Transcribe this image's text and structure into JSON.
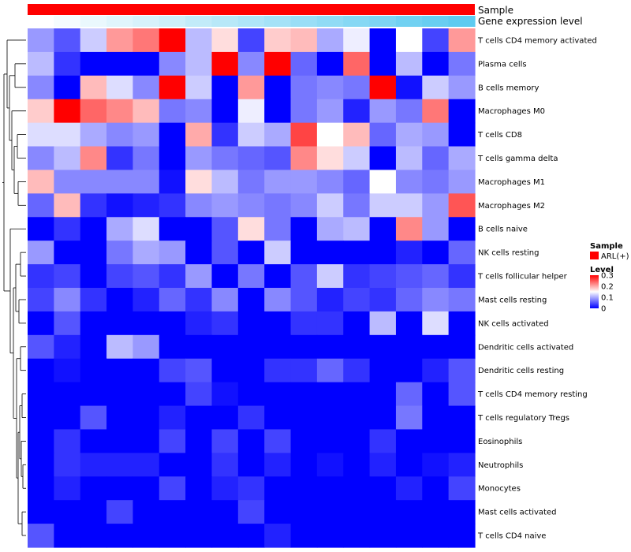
{
  "chart_data": {
    "type": "heatmap",
    "title": "",
    "annotations": [
      {
        "name": "Sample",
        "color": "#ff0000"
      },
      {
        "name": "Gene expression level",
        "gradient": [
          "#ffffff",
          "#5ecbf0"
        ]
      }
    ],
    "legend_sample": {
      "title": "Sample",
      "entries": [
        {
          "label": "ARL(+)",
          "color": "#ff0000"
        }
      ]
    },
    "legend_level": {
      "title": "Level",
      "ticks": [
        "0.3",
        "0.2",
        "0.1",
        "0"
      ],
      "tick_values": [
        0.3,
        0.2,
        0.1,
        0
      ],
      "range": [
        0,
        0.3
      ],
      "colors": {
        "low": "#0000ff",
        "mid": "#ffffff",
        "high": "#ff0000"
      }
    },
    "row_labels": [
      "T cells CD4 memory activated",
      "Plasma cells",
      "B cells memory",
      "Macrophages M0",
      "T cells CD8",
      "T cells gamma delta",
      "Macrophages M1",
      "Macrophages M2",
      "B cells naive",
      "NK cells resting",
      "T cells follicular helper",
      "Mast cells resting",
      "NK cells activated",
      "Dendritic cells activated",
      "Dendritic cells resting",
      "T cells CD4 memory resting",
      "T cells regulatory  Tregs",
      "Eosinophils",
      "Neutrophils",
      "Monocytes",
      "Mast cells activated",
      "T cells CD4 naive"
    ],
    "values": [
      [
        0.09,
        0.05,
        0.12,
        0.21,
        0.23,
        0.3,
        0.11,
        0.17,
        0.04,
        0.18,
        0.19,
        0.1,
        0.14,
        0.0,
        0.15,
        0.04,
        0.21
      ],
      [
        0.11,
        0.03,
        0.0,
        0.0,
        0.0,
        0.08,
        0.11,
        0.3,
        0.08,
        0.3,
        0.06,
        0.0,
        0.24,
        0.0,
        0.11,
        0.0,
        0.07
      ],
      [
        0.08,
        0.0,
        0.19,
        0.13,
        0.08,
        0.3,
        0.12,
        0.0,
        0.21,
        0.0,
        0.07,
        0.08,
        0.07,
        0.3,
        0.01,
        0.12,
        0.09
      ],
      [
        0.18,
        0.3,
        0.24,
        0.22,
        0.19,
        0.07,
        0.08,
        0.0,
        0.14,
        0.0,
        0.07,
        0.09,
        0.02,
        0.09,
        0.07,
        0.23,
        0.0
      ],
      [
        0.13,
        0.13,
        0.1,
        0.08,
        0.09,
        0.0,
        0.2,
        0.03,
        0.12,
        0.1,
        0.26,
        0.15,
        0.19,
        0.06,
        0.1,
        0.09,
        0.0
      ],
      [
        0.08,
        0.11,
        0.22,
        0.03,
        0.07,
        0.0,
        0.09,
        0.07,
        0.06,
        0.05,
        0.22,
        0.17,
        0.12,
        0.0,
        0.11,
        0.06,
        0.1
      ],
      [
        0.19,
        0.08,
        0.08,
        0.08,
        0.08,
        0.01,
        0.17,
        0.11,
        0.07,
        0.09,
        0.09,
        0.08,
        0.06,
        0.15,
        0.08,
        0.07,
        0.09
      ],
      [
        0.06,
        0.19,
        0.03,
        0.01,
        0.02,
        0.03,
        0.08,
        0.09,
        0.08,
        0.07,
        0.08,
        0.12,
        0.07,
        0.12,
        0.12,
        0.09,
        0.25
      ],
      [
        0.0,
        0.03,
        0.0,
        0.1,
        0.13,
        0.0,
        0.0,
        0.05,
        0.17,
        0.07,
        0.0,
        0.1,
        0.11,
        0.0,
        0.22,
        0.09,
        0.0
      ],
      [
        0.09,
        0.0,
        0.0,
        0.07,
        0.1,
        0.09,
        0.0,
        0.05,
        0.0,
        0.12,
        0.0,
        0.0,
        0.0,
        0.0,
        0.02,
        0.0,
        0.06
      ],
      [
        0.03,
        0.04,
        0.0,
        0.04,
        0.05,
        0.03,
        0.09,
        0.0,
        0.07,
        0.0,
        0.05,
        0.12,
        0.03,
        0.04,
        0.05,
        0.06,
        0.03
      ],
      [
        0.04,
        0.08,
        0.03,
        0.0,
        0.02,
        0.06,
        0.03,
        0.08,
        0.0,
        0.08,
        0.05,
        0.02,
        0.04,
        0.03,
        0.06,
        0.08,
        0.07
      ],
      [
        0.0,
        0.05,
        0.0,
        0.0,
        0.0,
        0.0,
        0.02,
        0.03,
        0.0,
        0.0,
        0.03,
        0.03,
        0.0,
        0.11,
        0.0,
        0.13,
        0.0
      ],
      [
        0.05,
        0.02,
        0.0,
        0.11,
        0.09,
        0.0,
        0.0,
        0.0,
        0.0,
        0.0,
        0.0,
        0.0,
        0.0,
        0.0,
        0.0,
        0.0,
        0.0
      ],
      [
        0.0,
        0.01,
        0.0,
        0.0,
        0.0,
        0.04,
        0.05,
        0.0,
        0.0,
        0.03,
        0.03,
        0.06,
        0.03,
        0.0,
        0.0,
        0.02,
        0.05
      ],
      [
        0.0,
        0.0,
        0.0,
        0.0,
        0.0,
        0.0,
        0.04,
        0.01,
        0.0,
        0.0,
        0.0,
        0.0,
        0.0,
        0.0,
        0.06,
        0.0,
        0.05
      ],
      [
        0.0,
        0.0,
        0.05,
        0.0,
        0.0,
        0.02,
        0.0,
        0.0,
        0.03,
        0.0,
        0.0,
        0.0,
        0.0,
        0.0,
        0.07,
        0.0,
        0.0
      ],
      [
        0.0,
        0.03,
        0.0,
        0.0,
        0.0,
        0.04,
        0.0,
        0.04,
        0.0,
        0.04,
        0.0,
        0.0,
        0.0,
        0.03,
        0.0,
        0.0,
        0.0
      ],
      [
        0.0,
        0.03,
        0.02,
        0.02,
        0.02,
        0.0,
        0.0,
        0.03,
        0.0,
        0.02,
        0.0,
        0.01,
        0.0,
        0.02,
        0.0,
        0.01,
        0.02
      ],
      [
        0.0,
        0.02,
        0.0,
        0.0,
        0.0,
        0.04,
        0.0,
        0.02,
        0.03,
        0.0,
        0.0,
        0.0,
        0.0,
        0.0,
        0.02,
        0.0,
        0.04
      ],
      [
        0.0,
        0.0,
        0.0,
        0.04,
        0.0,
        0.0,
        0.0,
        0.0,
        0.04,
        0.0,
        0.0,
        0.0,
        0.0,
        0.0,
        0.0,
        0.0,
        0.0
      ],
      [
        0.05,
        0.0,
        0.0,
        0.0,
        0.0,
        0.0,
        0.0,
        0.0,
        0.0,
        0.02,
        0.0,
        0.0,
        0.0,
        0.0,
        0.0,
        0.0,
        0.0
      ]
    ],
    "column_expression_levels": [
      0.0,
      0.06,
      0.13,
      0.19,
      0.25,
      0.31,
      0.38,
      0.44,
      0.5,
      0.56,
      0.63,
      0.69,
      0.75,
      0.81,
      0.88,
      0.94,
      1.0
    ]
  }
}
